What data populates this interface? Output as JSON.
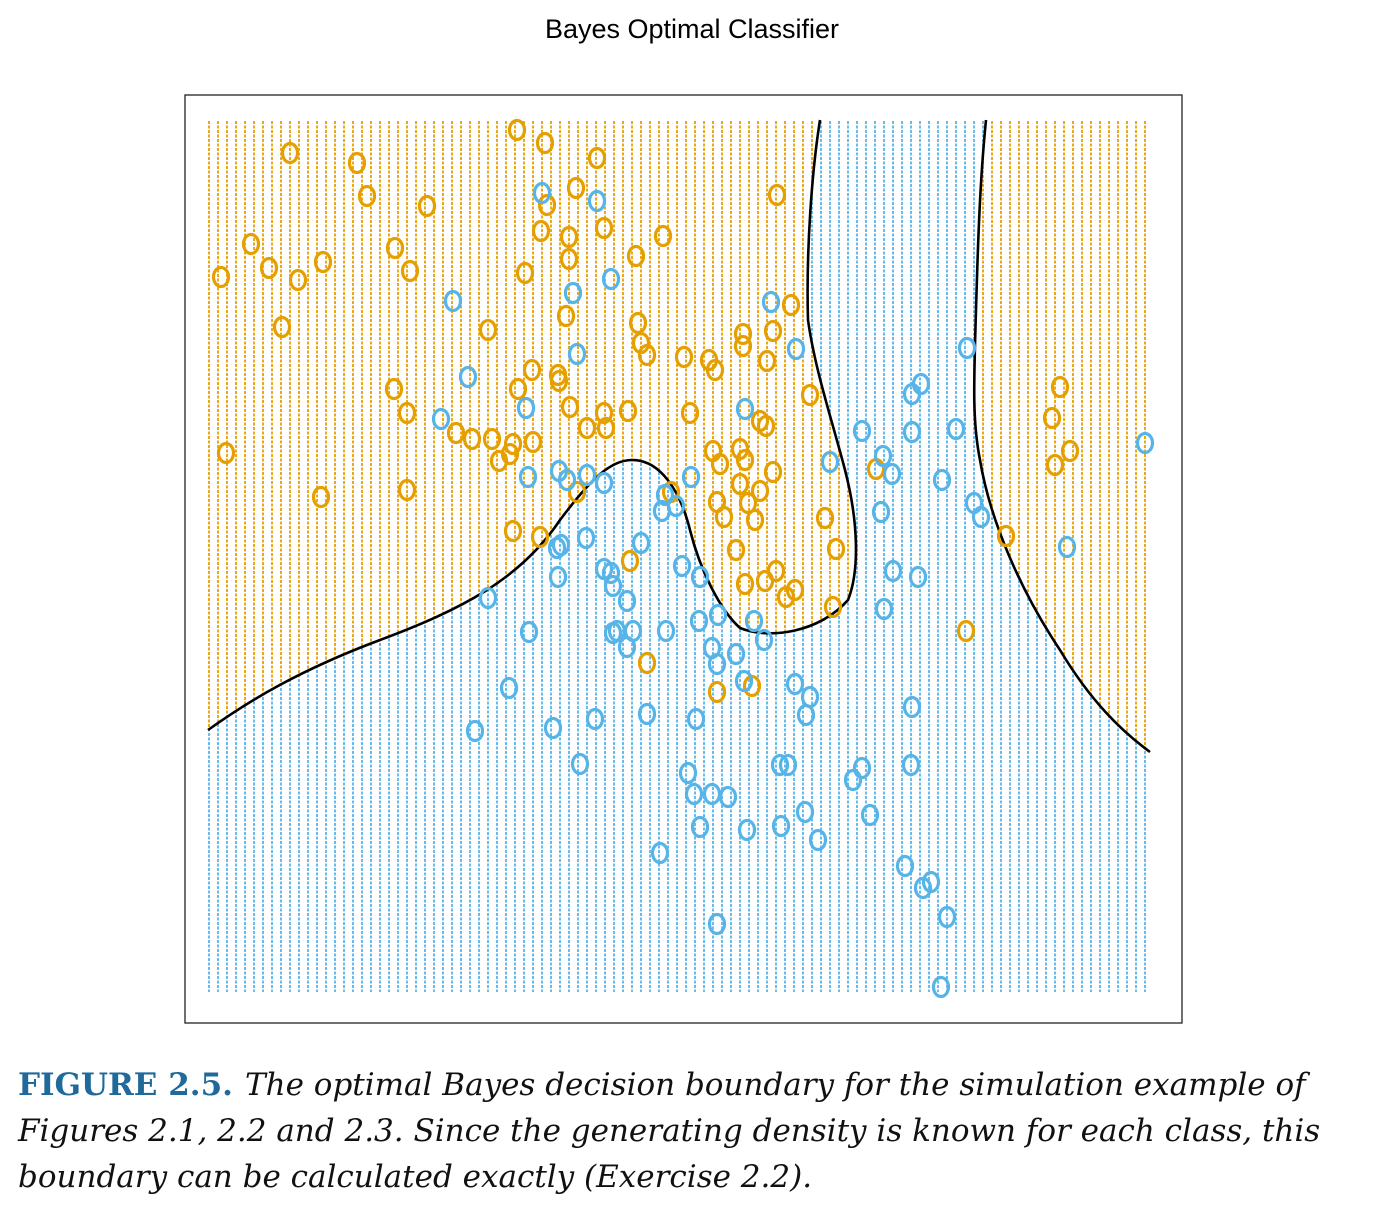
{
  "chart_data": {
    "type": "scatter",
    "title": "Bayes Optimal Classifier",
    "xlabel": "",
    "ylabel": "",
    "marker_glyph": "o",
    "grid": "dotted class-region background",
    "colors": {
      "orange": "#E69F00",
      "blue": "#56B4E9",
      "boundary": "#000000"
    },
    "series": [
      {
        "color": "#E69F00",
        "points": [
          [
            517,
            130
          ],
          [
            545,
            143
          ],
          [
            290,
            153
          ],
          [
            357,
            163
          ],
          [
            597,
            158
          ],
          [
            367,
            196
          ],
          [
            576,
            188
          ],
          [
            427,
            206
          ],
          [
            777,
            195
          ],
          [
            547,
            205
          ],
          [
            604,
            228
          ],
          [
            541,
            231
          ],
          [
            663,
            236
          ],
          [
            569,
            237
          ],
          [
            251,
            244
          ],
          [
            395,
            248
          ],
          [
            269,
            268
          ],
          [
            569,
            259
          ],
          [
            636,
            256
          ],
          [
            323,
            262
          ],
          [
            221,
            277
          ],
          [
            298,
            280
          ],
          [
            410,
            271
          ],
          [
            525,
            273
          ],
          [
            791,
            305
          ],
          [
            566,
            316
          ],
          [
            282,
            327
          ],
          [
            488,
            330
          ],
          [
            638,
            323
          ],
          [
            773,
            331
          ],
          [
            743,
            334
          ],
          [
            641,
            343
          ],
          [
            743,
            346
          ],
          [
            647,
            355
          ],
          [
            684,
            357
          ],
          [
            709,
            360
          ],
          [
            767,
            361
          ],
          [
            715,
            370
          ],
          [
            532,
            370
          ],
          [
            558,
            375
          ],
          [
            559,
            381
          ],
          [
            394,
            389
          ],
          [
            518,
            389
          ],
          [
            810,
            395
          ],
          [
            407,
            413
          ],
          [
            570,
            407
          ],
          [
            628,
            411
          ],
          [
            604,
            413
          ],
          [
            690,
            413
          ],
          [
            760,
            421
          ],
          [
            766,
            426
          ],
          [
            587,
            428
          ],
          [
            606,
            428
          ],
          [
            456,
            433
          ],
          [
            472,
            439
          ],
          [
            492,
            439
          ],
          [
            513,
            444
          ],
          [
            533,
            442
          ],
          [
            510,
            454
          ],
          [
            499,
            461
          ],
          [
            740,
            449
          ],
          [
            713,
            451
          ],
          [
            720,
            464
          ],
          [
            745,
            460
          ],
          [
            773,
            472
          ],
          [
            226,
            453
          ],
          [
            876,
            469
          ],
          [
            740,
            484
          ],
          [
            760,
            491
          ],
          [
            577,
            492
          ],
          [
            717,
            502
          ],
          [
            321,
            497
          ],
          [
            671,
            492
          ],
          [
            407,
            490
          ],
          [
            748,
            503
          ],
          [
            724,
            517
          ],
          [
            755,
            520
          ],
          [
            825,
            518
          ],
          [
            513,
            531
          ],
          [
            540,
            537
          ],
          [
            836,
            549
          ],
          [
            736,
            550
          ],
          [
            630,
            561
          ],
          [
            776,
            571
          ],
          [
            765,
            581
          ],
          [
            745,
            584
          ],
          [
            795,
            590
          ],
          [
            786,
            597
          ],
          [
            833,
            607
          ],
          [
            647,
            663
          ],
          [
            966,
            631
          ],
          [
            717,
            692
          ],
          [
            752,
            686
          ],
          [
            1060,
            387
          ],
          [
            1052,
            418
          ],
          [
            1055,
            465
          ],
          [
            1070,
            451
          ],
          [
            1006,
            536
          ]
        ]
      },
      {
        "color": "#56B4E9",
        "points": [
          [
            542,
            193
          ],
          [
            597,
            201
          ],
          [
            611,
            279
          ],
          [
            573,
            293
          ],
          [
            771,
            302
          ],
          [
            453,
            301
          ],
          [
            967,
            348
          ],
          [
            577,
            354
          ],
          [
            796,
            349
          ],
          [
            468,
            377
          ],
          [
            921,
            384
          ],
          [
            912,
            394
          ],
          [
            745,
            409
          ],
          [
            526,
            408
          ],
          [
            441,
            419
          ],
          [
            862,
            431
          ],
          [
            912,
            432
          ],
          [
            956,
            429
          ],
          [
            883,
            456
          ],
          [
            830,
            462
          ],
          [
            892,
            474
          ],
          [
            942,
            480
          ],
          [
            559,
            471
          ],
          [
            587,
            475
          ],
          [
            567,
            480
          ],
          [
            604,
            483
          ],
          [
            691,
            477
          ],
          [
            528,
            477
          ],
          [
            665,
            495
          ],
          [
            676,
            506
          ],
          [
            662,
            511
          ],
          [
            974,
            503
          ],
          [
            981,
            517
          ],
          [
            881,
            512
          ],
          [
            561,
            545
          ],
          [
            557,
            548
          ],
          [
            586,
            538
          ],
          [
            641,
            543
          ],
          [
            1067,
            547
          ],
          [
            682,
            566
          ],
          [
            700,
            577
          ],
          [
            604,
            569
          ],
          [
            611,
            573
          ],
          [
            613,
            586
          ],
          [
            893,
            571
          ],
          [
            918,
            577
          ],
          [
            558,
            577
          ],
          [
            627,
            601
          ],
          [
            488,
            598
          ],
          [
            884,
            609
          ],
          [
            718,
            615
          ],
          [
            699,
            621
          ],
          [
            754,
            621
          ],
          [
            617,
            631
          ],
          [
            613,
            633
          ],
          [
            633,
            631
          ],
          [
            666,
            631
          ],
          [
            529,
            632
          ],
          [
            764,
            640
          ],
          [
            627,
            647
          ],
          [
            712,
            648
          ],
          [
            736,
            654
          ],
          [
            717,
            664
          ],
          [
            744,
            681
          ],
          [
            795,
            684
          ],
          [
            810,
            697
          ],
          [
            806,
            715
          ],
          [
            509,
            688
          ],
          [
            912,
            707
          ],
          [
            647,
            714
          ],
          [
            595,
            719
          ],
          [
            553,
            728
          ],
          [
            696,
            719
          ],
          [
            475,
            731
          ],
          [
            580,
            764
          ],
          [
            780,
            765
          ],
          [
            788,
            765
          ],
          [
            862,
            768
          ],
          [
            853,
            780
          ],
          [
            911,
            765
          ],
          [
            688,
            773
          ],
          [
            694,
            794
          ],
          [
            712,
            794
          ],
          [
            728,
            797
          ],
          [
            805,
            812
          ],
          [
            870,
            815
          ],
          [
            700,
            827
          ],
          [
            747,
            830
          ],
          [
            781,
            826
          ],
          [
            818,
            840
          ],
          [
            660,
            853
          ],
          [
            905,
            866
          ],
          [
            931,
            882
          ],
          [
            923,
            888
          ],
          [
            947,
            917
          ],
          [
            717,
            924
          ],
          [
            941,
            987
          ],
          [
            1145,
            443
          ]
        ]
      }
    ]
  },
  "figure": {
    "label": "FIGURE 2.5.",
    "text": "The optimal Bayes decision boundary for the simulation example of Figures 2.1, 2.2 and 2.3. Since the generating density is known for each class, this boundary can be calculated exactly (Exercise 2.2)."
  }
}
